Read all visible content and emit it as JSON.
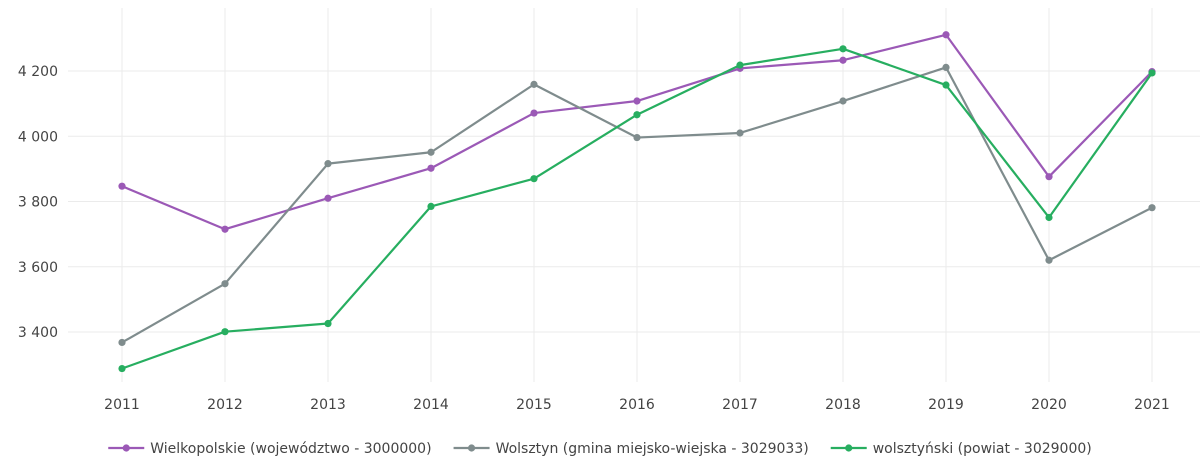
{
  "chart_data": {
    "type": "line",
    "title": "",
    "xlabel": "",
    "ylabel": "",
    "categories": [
      "2011",
      "2012",
      "2013",
      "2014",
      "2015",
      "2016",
      "2017",
      "2018",
      "2019",
      "2020",
      "2021"
    ],
    "ylim": [
      3200,
      4400
    ],
    "yticks": [
      3400,
      3600,
      3800,
      4000,
      4200
    ],
    "ytick_labels": [
      "3 400",
      "3 600",
      "3 800",
      "4 000",
      "4 200"
    ],
    "grid": true,
    "legend": "bottom",
    "series": [
      {
        "name": "Wielkopolskie (województwo - 3000000)",
        "color": "#9b59b6",
        "values": [
          3847,
          3715,
          3810,
          3902,
          4071,
          4108,
          4208,
          4233,
          4311,
          3876,
          4198
        ]
      },
      {
        "name": "Wolsztyn (gmina miejsko-wiejska - 3029033)",
        "color": "#7f8c8d",
        "values": [
          3368,
          3548,
          3916,
          3951,
          4159,
          3996,
          4010,
          4108,
          4211,
          3620,
          3781
        ]
      },
      {
        "name": "wolsztyński (powiat - 3029000)",
        "color": "#27ae60",
        "values": [
          3288,
          3401,
          3426,
          3785,
          3870,
          4066,
          4218,
          4268,
          4157,
          3751,
          4194
        ]
      }
    ]
  }
}
